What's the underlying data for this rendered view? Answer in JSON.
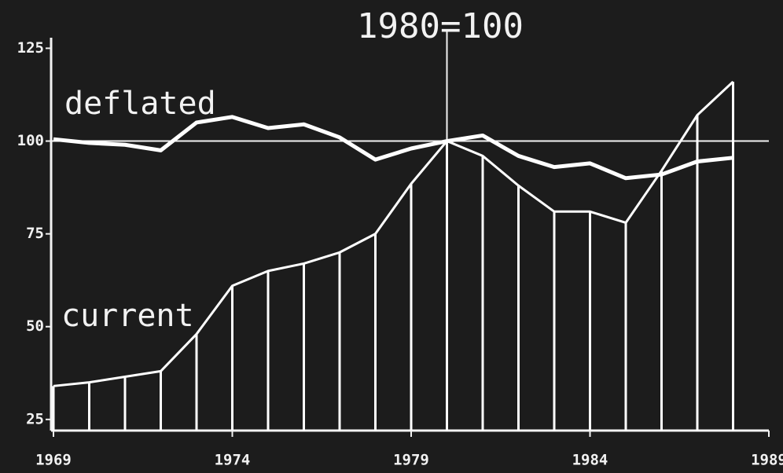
{
  "chart_data": {
    "type": "line",
    "annotation": "1980=100",
    "x": [
      1969,
      1970,
      1971,
      1972,
      1973,
      1974,
      1975,
      1976,
      1977,
      1978,
      1979,
      1980,
      1981,
      1982,
      1983,
      1984,
      1985,
      1986,
      1987,
      1988
    ],
    "series": [
      {
        "name": "deflated",
        "color": "#ffffff",
        "values": [
          100.5,
          99.5,
          99,
          97.5,
          105,
          106.5,
          103.5,
          104.5,
          101,
          95,
          98,
          100,
          101.5,
          96,
          93,
          94,
          90,
          91,
          94.5,
          95.5
        ]
      },
      {
        "name": "current",
        "color": "#ffffff",
        "drop_lines": true,
        "values": [
          34,
          35,
          36.5,
          38,
          48,
          61,
          65,
          67,
          70,
          75,
          88.5,
          100,
          96,
          88,
          81,
          81,
          78,
          92,
          107,
          116
        ]
      }
    ],
    "reference_x": 1980,
    "reference_y": 100,
    "xlim": [
      1969,
      1989
    ],
    "xticks": [
      1969,
      1974,
      1979,
      1984,
      1989
    ],
    "ylim": [
      22,
      127
    ],
    "yticks": [
      25,
      50,
      75,
      100,
      125
    ]
  }
}
